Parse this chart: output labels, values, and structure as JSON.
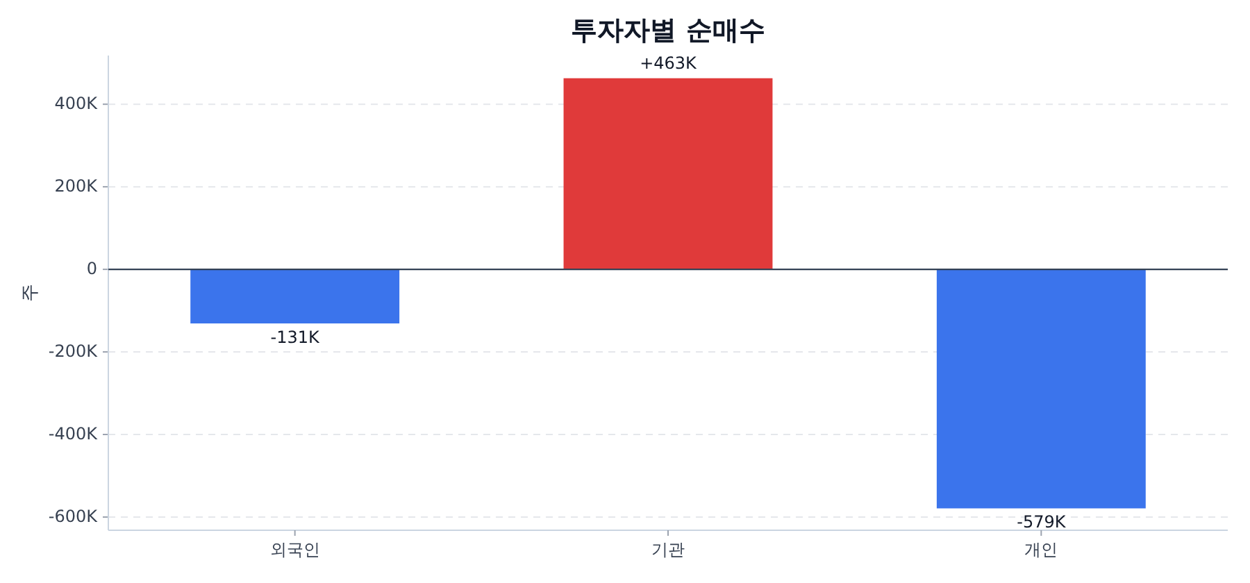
{
  "chart_data": {
    "type": "bar",
    "title": "투자자별 순매수",
    "ylabel": "주",
    "categories": [
      "외국인",
      "기관",
      "개인"
    ],
    "values": [
      -131000,
      463000,
      -579000
    ],
    "colors": [
      "#3b74ec",
      "#e03a3a",
      "#3b74ec"
    ],
    "value_labels": [
      "-131K",
      "+463K",
      "-579K"
    ],
    "ylim": [
      -632000,
      518000
    ],
    "yticks": [
      {
        "value": -600000,
        "label": "-600K"
      },
      {
        "value": -400000,
        "label": "-400K"
      },
      {
        "value": -200000,
        "label": "-200K"
      },
      0,
      {
        "value": 200000,
        "label": "200K"
      },
      {
        "value": 400000,
        "label": "400K"
      }
    ],
    "grid": "y",
    "ref_lines": [
      {
        "axis": "y",
        "value": 0,
        "color": "#334155"
      }
    ]
  }
}
